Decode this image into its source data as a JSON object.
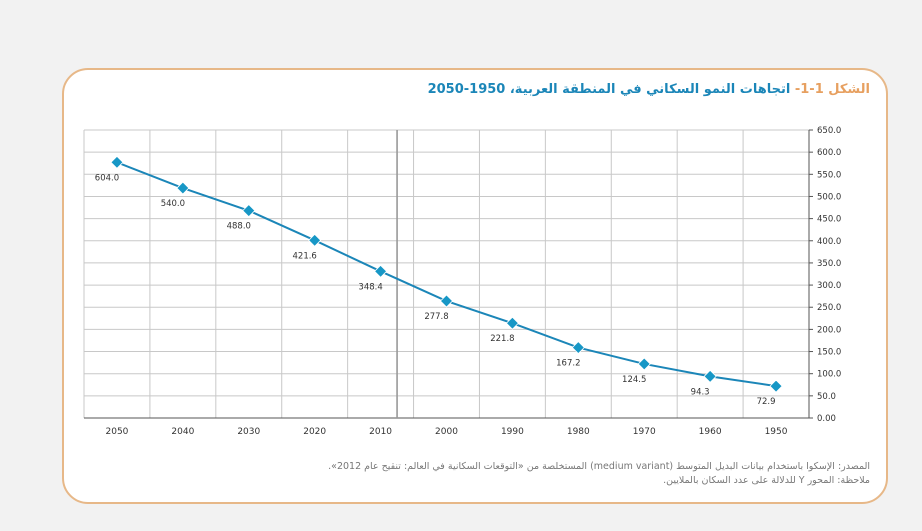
{
  "figure": {
    "title_prefix": "الشكل 1-1-",
    "title_text": "اتجاهات النمو السكاني في المنطقة العربية، 1950-2050",
    "source_note": "المصدر: الإسكوا باستخدام بيانات البديل المتوسط (medium variant) المستخلصة من «التوقعات السكانية في العالم: تنقيح عام 2012».",
    "axis_note": "ملاحظة: المحور Y للدلالة على عدد السكان بالملايين."
  },
  "colors": {
    "line": "#1b86b8",
    "marker": "#1797c6",
    "grid": "#c8c8c8",
    "border": "#e7b888",
    "title": "#1b86b8",
    "title_prefix": "#e7a060",
    "divider": "#999999"
  },
  "chart_data": {
    "type": "line",
    "x_reversed": true,
    "categories": [
      "2050",
      "2040",
      "2030",
      "2020",
      "2010",
      "2000",
      "1990",
      "1980",
      "1970",
      "1960",
      "1950"
    ],
    "series": [
      {
        "values": [
          604.0,
          540.0,
          488.0,
          421.6,
          348.4,
          277.8,
          221.8,
          167.2,
          124.5,
          94.3,
          72.9
        ],
        "labels": [
          "604.0",
          "540.0",
          "488.0",
          "421.6",
          "348.4",
          "277.8",
          "221.8",
          "167.2",
          "124.5",
          "94.3",
          "72.9"
        ]
      }
    ],
    "x_plotted": [
      577,
      519,
      468,
      401,
      331,
      264,
      214,
      159,
      122,
      94,
      72
    ],
    "yticks": [
      "0.00",
      "50.0",
      "100.0",
      "150.0",
      "200.0",
      "250.0",
      "300.0",
      "350.0",
      "400.0",
      "450.0",
      "500.0",
      "550.0",
      "600.0",
      "650.0"
    ],
    "ylim": [
      0,
      650
    ],
    "y_axis_side": "right",
    "grid": true,
    "vertical_marker_at": "2010"
  }
}
